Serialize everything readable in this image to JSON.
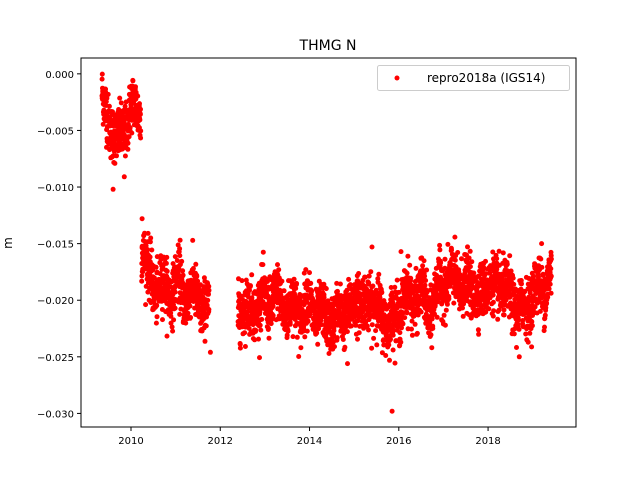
{
  "chart_data": {
    "type": "scatter",
    "title": "THMG N",
    "xlabel": "",
    "ylabel": "m",
    "xlim": [
      2008.88,
      2019.97
    ],
    "ylim": [
      -0.0312,
      0.0014
    ],
    "xticks": [
      2010,
      2012,
      2014,
      2016,
      2018
    ],
    "xtick_labels": [
      "2010",
      "2012",
      "2014",
      "2016",
      "2018"
    ],
    "yticks": [
      0.0,
      -0.005,
      -0.01,
      -0.015,
      -0.02,
      -0.025,
      -0.03
    ],
    "ytick_labels": [
      "0.000",
      "−0.005",
      "−0.010",
      "−0.015",
      "−0.020",
      "−0.025",
      "−0.030"
    ],
    "grid": false,
    "legend": {
      "placement": "top-right",
      "entries": [
        "repro2018a (IGS14)"
      ]
    },
    "color": "#ff0000",
    "series": [
      {
        "name": "repro2018a (IGS14)",
        "note_sampling": "daily solutions; trend with scatter",
        "noise_std": 0.0012,
        "segments": [
          {
            "trend": [
              [
                2009.35,
                -0.0015
              ],
              [
                2009.5,
                -0.0045
              ],
              [
                2009.7,
                -0.0058
              ],
              [
                2009.9,
                -0.0045
              ],
              [
                2010.0,
                -0.003
              ],
              [
                2010.22,
                -0.0032
              ]
            ]
          },
          {
            "trend": [
              [
                2010.24,
                -0.015
              ],
              [
                2010.4,
                -0.018
              ],
              [
                2010.7,
                -0.0192
              ],
              [
                2011.0,
                -0.0188
              ],
              [
                2011.4,
                -0.0195
              ],
              [
                2011.75,
                -0.021
              ]
            ]
          },
          {
            "trend": [
              [
                2012.4,
                -0.021
              ],
              [
                2012.8,
                -0.0205
              ],
              [
                2013.2,
                -0.0198
              ],
              [
                2013.6,
                -0.0208
              ],
              [
                2014.0,
                -0.0205
              ],
              [
                2014.4,
                -0.0218
              ],
              [
                2014.8,
                -0.0212
              ],
              [
                2015.1,
                -0.02
              ],
              [
                2015.5,
                -0.0205
              ],
              [
                2015.8,
                -0.0222
              ],
              [
                2016.1,
                -0.02
              ],
              [
                2016.5,
                -0.0195
              ],
              [
                2016.7,
                -0.021
              ],
              [
                2017.0,
                -0.0182
              ],
              [
                2017.4,
                -0.0185
              ],
              [
                2017.8,
                -0.0195
              ],
              [
                2018.1,
                -0.0185
              ],
              [
                2018.5,
                -0.0195
              ],
              [
                2018.7,
                -0.0212
              ],
              [
                2019.0,
                -0.0195
              ],
              [
                2019.42,
                -0.018
              ]
            ]
          }
        ],
        "outliers": [
          [
            2009.6,
            -0.0102
          ],
          [
            2009.85,
            -0.0091
          ],
          [
            2010.25,
            -0.0128
          ],
          [
            2011.1,
            -0.0147
          ],
          [
            2011.78,
            -0.0246
          ],
          [
            2014.85,
            -0.0256
          ],
          [
            2015.4,
            -0.0153
          ],
          [
            2015.85,
            -0.0298
          ],
          [
            2016.05,
            -0.0157
          ],
          [
            2018.7,
            -0.025
          ],
          [
            2019.2,
            -0.015
          ]
        ]
      }
    ]
  }
}
